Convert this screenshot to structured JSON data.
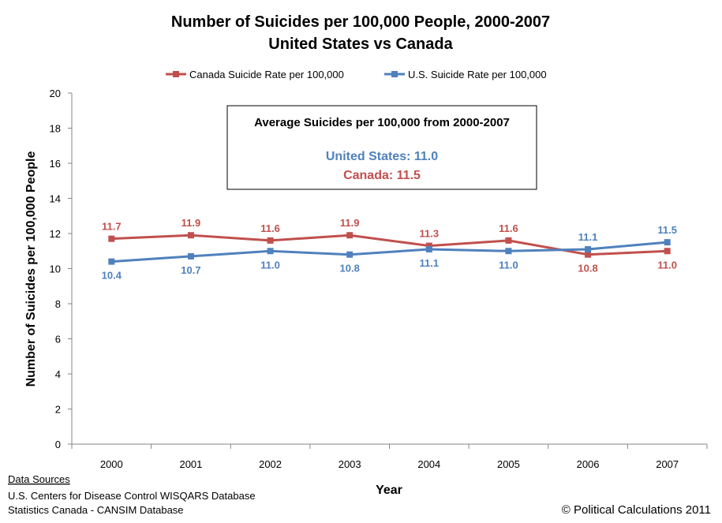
{
  "chart_data": {
    "type": "line",
    "title": "Number of Suicides per 100,000 People, 2000-2007",
    "subtitle": "United States vs Canada",
    "xlabel": "Year",
    "ylabel": "Number of Suicides per 100,000 People",
    "categories": [
      "2000",
      "2001",
      "2002",
      "2003",
      "2004",
      "2005",
      "2006",
      "2007"
    ],
    "ylim": [
      0,
      20
    ],
    "yticks": [
      0,
      2,
      4,
      6,
      8,
      10,
      12,
      14,
      16,
      18,
      20
    ],
    "grid": false,
    "legend_position": "top",
    "series": [
      {
        "name": "Canada Suicide Rate per 100,000",
        "color": "#c0504d",
        "values": [
          11.7,
          11.9,
          11.6,
          11.9,
          11.3,
          11.6,
          10.8,
          11.0
        ],
        "labels": [
          "11.7",
          "11.9",
          "11.6",
          "11.9",
          "11.3",
          "11.6",
          "10.8",
          "11.0"
        ],
        "label_side": [
          "above",
          "above",
          "above",
          "above",
          "above",
          "above",
          "below",
          "below"
        ]
      },
      {
        "name": "U.S. Suicide Rate per 100,000",
        "color": "#4f81bd",
        "values": [
          10.4,
          10.7,
          11.0,
          10.8,
          11.1,
          11.0,
          11.1,
          11.5
        ],
        "labels": [
          "10.4",
          "10.7",
          "11.0",
          "10.8",
          "11.1",
          "11.0",
          "11.1",
          "11.5"
        ],
        "label_side": [
          "below",
          "below",
          "below",
          "below",
          "below",
          "below",
          "above",
          "above"
        ]
      }
    ],
    "annotation": {
      "title": "Average Suicides per 100,000 from 2000-2007",
      "lines": [
        {
          "text": "United States: 11.0",
          "color": "#4f81bd"
        },
        {
          "text": "Canada: 11.5",
          "color": "#c0504d"
        }
      ]
    }
  },
  "sources": {
    "heading": "Data Sources",
    "lines": [
      "U.S. Centers for Disease Control WISQARS Database",
      "Statistics Canada - CANSIM Database"
    ]
  },
  "copyright": "© Political Calculations 2011"
}
